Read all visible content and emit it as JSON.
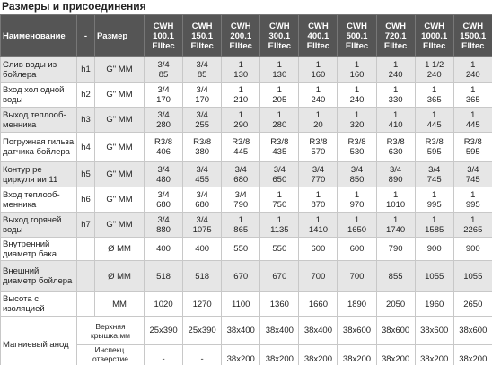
{
  "title": "Размеры и присоединения",
  "table": {
    "header": [
      "Наименование",
      "-",
      "Размер",
      "CWH\n100.1\nElltec",
      "CWH\n150.1\nElltec",
      "CWH\n200.1\nElltec",
      "CWH\n300.1\nElltec",
      "CWH\n400.1\nElltec",
      "CWH\n500.1\nElltec",
      "CWH\n720.1\nElltec",
      "CWH\n1000.1\nElltec",
      "CWH\n1500.1\nElltec"
    ],
    "rows": [
      {
        "name": "Слив воды из бойлера",
        "code": "h1",
        "size": "G\" ММ",
        "values": [
          "3/4\n85",
          "3/4\n85",
          "1\n130",
          "1\n130",
          "1\n160",
          "1\n160",
          "1\n240",
          "1 1/2\n240",
          "1\n240"
        ]
      },
      {
        "name": "Вход хол одной воды",
        "code": "h2",
        "size": "G\" ММ",
        "values": [
          "3/4\n170",
          "3/4\n170",
          "1\n210",
          "1\n205",
          "1\n240",
          "1\n240",
          "1\n330",
          "1\n365",
          "1\n365"
        ]
      },
      {
        "name": "Выход теплооб-менника",
        "code": "h3",
        "size": "G\" ММ",
        "values": [
          "3/4\n280",
          "3/4\n255",
          "1\n290",
          "1\n280",
          "1\n20",
          "1\n320",
          "1\n410",
          "1\n445",
          "1\n445"
        ]
      },
      {
        "name": "Погружная гильза датчика бойлера",
        "code": "h4",
        "size": "G\" ММ",
        "values": [
          "R3/8\n406",
          "R3/8\n380",
          "R3/8\n445",
          "R3/8\n435",
          "R3/8\n570",
          "R3/8\n530",
          "R3/8\n630",
          "R3/8\n595",
          "R3/8\n595"
        ]
      },
      {
        "name": "Контур ре циркуля ии 11",
        "code": "h5",
        "size": "G\" ММ",
        "values": [
          "3/4\n480",
          "3/4\n455",
          "3/4\n680",
          "3/4\n650",
          "3/4\n770",
          "3/4\n850",
          "3/4\n890",
          "3/4\n745",
          "3/4\n745"
        ]
      },
      {
        "name": "Вход теплооб-менника",
        "code": "h6",
        "size": "G\" ММ",
        "values": [
          "3/4\n680",
          "3/4\n680",
          "3/4\n790",
          "1\n750",
          "1\n870",
          "1\n970",
          "1\n1010",
          "1\n995",
          "1\n995"
        ]
      },
      {
        "name": "Выход горячей воды",
        "code": "h7",
        "size": "G\" ММ",
        "values": [
          "3/4\n880",
          "3/4\n1075",
          "1\n865",
          "1\n1135",
          "1\n1410",
          "1\n1650",
          "1\n1740",
          "1\n1585",
          "1\n2265"
        ]
      },
      {
        "name": "Внутренний диаметр бака",
        "size": "Ø ММ",
        "values": [
          "400",
          "400",
          "550",
          "550",
          "600",
          "600",
          "790",
          "900",
          "900"
        ]
      },
      {
        "name": "Внешний диаметр бойлера",
        "size": "Ø ММ",
        "values": [
          "518",
          "518",
          "670",
          "670",
          "700",
          "700",
          "855",
          "1055",
          "1055"
        ]
      },
      {
        "name": "Высота с изоляцией",
        "size": "ММ",
        "values": [
          "1020",
          "1270",
          "1100",
          "1360",
          "1660",
          "1890",
          "2050",
          "1960",
          "2650"
        ]
      }
    ],
    "anode": {
      "name": "Магниевый анод",
      "rows": [
        {
          "size": "Верхняя крышка,мм",
          "values": [
            "25x390",
            "25x390",
            "38x400",
            "38x400",
            "38x400",
            "38x600",
            "38x600",
            "38x600",
            "38x600"
          ]
        },
        {
          "size": "Инспекц. отверстие крышка,мм",
          "values": [
            "-",
            "-",
            "38x200",
            "38x200",
            "38x200",
            "38x200",
            "38x200",
            "38x200",
            "38x200"
          ]
        }
      ]
    }
  }
}
